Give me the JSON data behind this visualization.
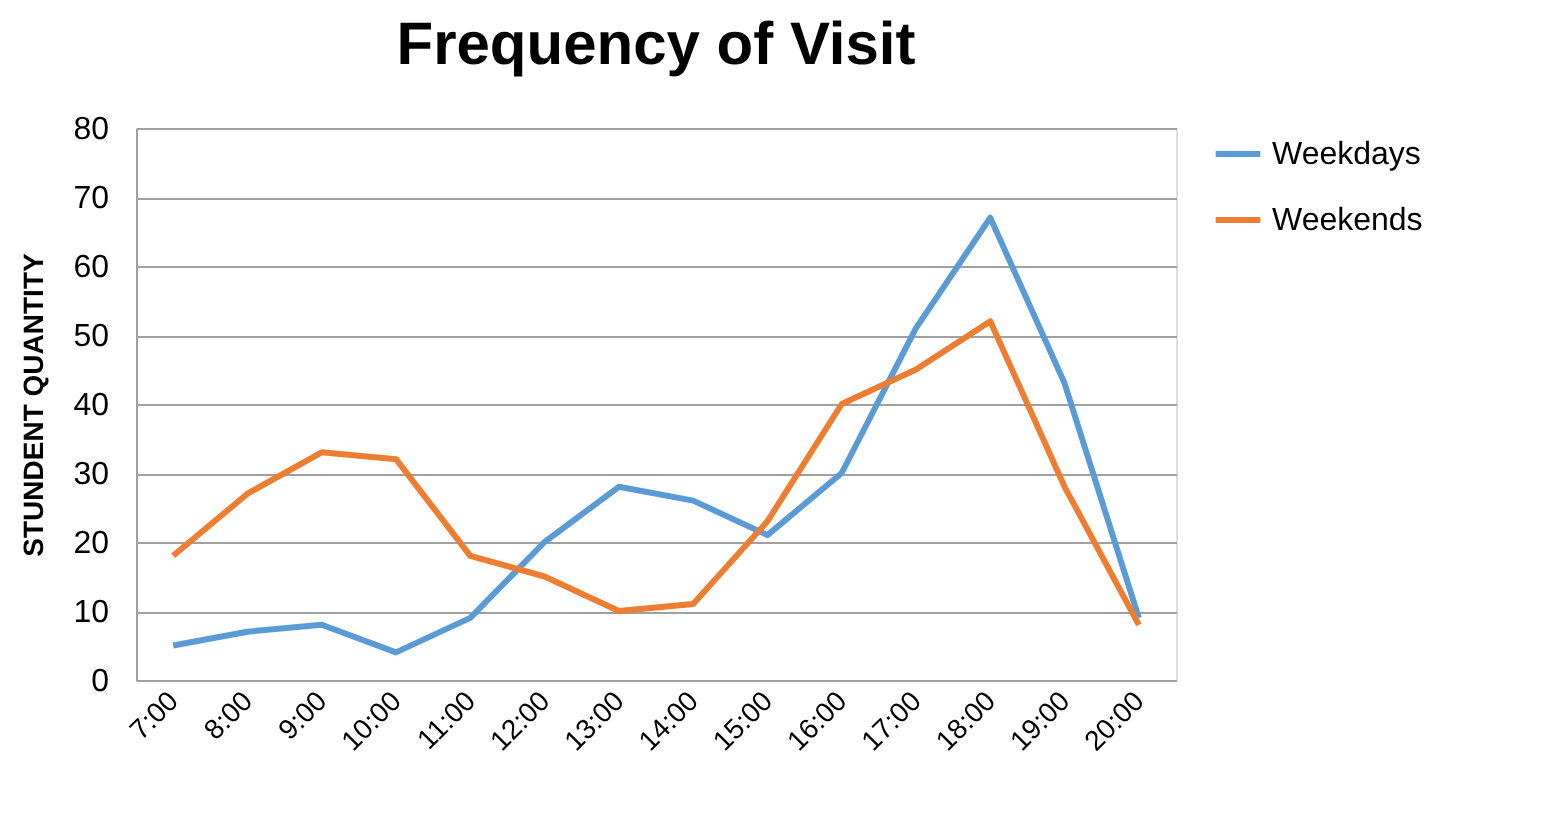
{
  "chart_data": {
    "type": "line",
    "title": "Frequency of Visit",
    "ylabel": "STUNDENT QUANTITY",
    "categories": [
      "7:00",
      "8:00",
      "9:00",
      "10:00",
      "11:00",
      "12:00",
      "13:00",
      "14:00",
      "15:00",
      "16:00",
      "17:00",
      "18:00",
      "19:00",
      "20:00"
    ],
    "series": [
      {
        "name": "Weekdays",
        "color": "#5b9bd5",
        "values": [
          5,
          7,
          8,
          4,
          9,
          20,
          28,
          26,
          21,
          30,
          51,
          67,
          43,
          9
        ]
      },
      {
        "name": "Weekends",
        "color": "#ed7d31",
        "values": [
          18,
          27,
          33,
          32,
          18,
          15,
          10,
          11,
          23,
          40,
          45,
          52,
          28,
          8
        ]
      }
    ],
    "ylim": [
      0,
      80
    ],
    "yticks": [
      0,
      10,
      20,
      30,
      40,
      50,
      60,
      70,
      80
    ],
    "grid": "y",
    "legend": "right",
    "marker": "none",
    "line_style": "solid"
  }
}
